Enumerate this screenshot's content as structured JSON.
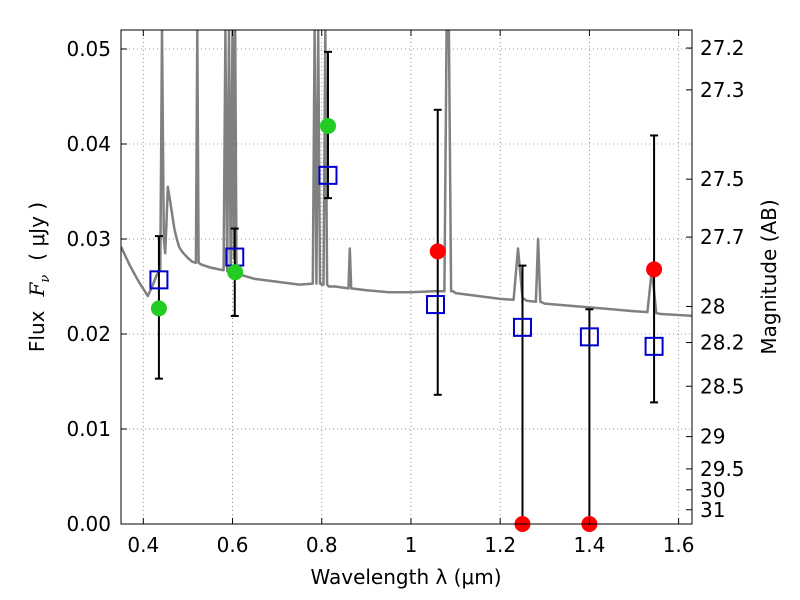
{
  "chart_data": {
    "type": "scatter",
    "xlabel": "Wavelength  λ (μm)",
    "ylabel": "Flux  F_ν  ( μJy )",
    "ylabel_prefix": "Flux",
    "ylabel_sym": "F",
    "ylabel_sub": "ν",
    "ylabel_unit": "( μJy )",
    "y2label": "Magnitude (AB)",
    "xlim": [
      0.35,
      1.63
    ],
    "ylim": [
      0.0,
      0.052
    ],
    "grid": true,
    "x_ticks": [
      0.4,
      0.6,
      0.8,
      1.0,
      1.2,
      1.4,
      1.6
    ],
    "x_tick_labels": [
      "0.4",
      "0.6",
      "0.8",
      "1",
      "1.2",
      "1.4",
      "1.6"
    ],
    "y_ticks": [
      0.0,
      0.01,
      0.02,
      0.03,
      0.04,
      0.05
    ],
    "y_tick_labels": [
      "0.00",
      "0.01",
      "0.02",
      "0.03",
      "0.04",
      "0.05"
    ],
    "mag_ticks": [
      {
        "flux": 0.0501,
        "label": "27.2"
      },
      {
        "flux": 0.0457,
        "label": "27.3"
      },
      {
        "flux": 0.0363,
        "label": "27.5"
      },
      {
        "flux": 0.0302,
        "label": "27.7"
      },
      {
        "flux": 0.0229,
        "label": "28"
      },
      {
        "flux": 0.0191,
        "label": "28.2"
      },
      {
        "flux": 0.0145,
        "label": "28.5"
      },
      {
        "flux": 0.0092,
        "label": "29"
      },
      {
        "flux": 0.0058,
        "label": "29.5"
      },
      {
        "flux": 0.0036,
        "label": "30"
      },
      {
        "flux": 0.0015,
        "label": "31"
      }
    ],
    "colors": {
      "model_line": "#808080",
      "green_points": "#22cc22",
      "red_points": "#ff0000",
      "squares": "#0000cc",
      "errorbars": "#000000"
    },
    "series": [
      {
        "marker": "square",
        "x": [
          0.435,
          0.605,
          0.814,
          1.055,
          1.25,
          1.4,
          1.545
        ],
        "y": [
          0.0257,
          0.0281,
          0.0367,
          0.0231,
          0.0207,
          0.0197,
          0.0187
        ]
      },
      {
        "marker": "circle-green",
        "x": [
          0.435,
          0.606,
          0.814
        ],
        "y": [
          0.0227,
          0.0265,
          0.0419
        ]
      },
      {
        "marker": "circle-red",
        "x": [
          1.06,
          1.25,
          1.4,
          1.545
        ],
        "y": [
          0.0287,
          0.0,
          0.0,
          0.0268
        ]
      }
    ],
    "errorbars": [
      {
        "x": 0.435,
        "low": 0.0153,
        "high": 0.0303
      },
      {
        "x": 0.605,
        "low": 0.0219,
        "high": 0.0311
      },
      {
        "x": 0.814,
        "low": 0.0343,
        "high": 0.0497
      },
      {
        "x": 1.06,
        "low": 0.0136,
        "high": 0.0436
      },
      {
        "x": 1.25,
        "low": 0.0,
        "high": 0.0272
      },
      {
        "x": 1.4,
        "low": 0.0,
        "high": 0.0226
      },
      {
        "x": 1.545,
        "low": 0.0128,
        "high": 0.0409
      }
    ],
    "model_spectrum": {
      "x": [
        0.35,
        0.37,
        0.39,
        0.41,
        0.42,
        0.43,
        0.438,
        0.442,
        0.446,
        0.449,
        0.452,
        0.455,
        0.46,
        0.465,
        0.47,
        0.475,
        0.48,
        0.485,
        0.49,
        0.5,
        0.51,
        0.518,
        0.521,
        0.524,
        0.53,
        0.55,
        0.57,
        0.58,
        0.584,
        0.588,
        0.592,
        0.596,
        0.6,
        0.603,
        0.606,
        0.609,
        0.612,
        0.62,
        0.65,
        0.7,
        0.75,
        0.78,
        0.784,
        0.788,
        0.792,
        0.796,
        0.8,
        0.804,
        0.808,
        0.812,
        0.816,
        0.83,
        0.86,
        0.863,
        0.866,
        0.9,
        0.95,
        1.0,
        1.05,
        1.075,
        1.08,
        1.085,
        1.09,
        1.095,
        1.1,
        1.15,
        1.2,
        1.23,
        1.24,
        1.25,
        1.26,
        1.28,
        1.285,
        1.29,
        1.3,
        1.35,
        1.4,
        1.45,
        1.5,
        1.53,
        1.54,
        1.55,
        1.56,
        1.6,
        1.63
      ],
      "y": [
        0.0292,
        0.0272,
        0.0255,
        0.024,
        0.025,
        0.0262,
        0.0268,
        0.052,
        0.03,
        0.0285,
        0.0318,
        0.0355,
        0.034,
        0.0325,
        0.031,
        0.03,
        0.0292,
        0.0288,
        0.0285,
        0.028,
        0.0276,
        0.0275,
        0.052,
        0.0275,
        0.0273,
        0.027,
        0.0268,
        0.0267,
        0.052,
        0.0266,
        0.052,
        0.0266,
        0.052,
        0.028,
        0.052,
        0.0265,
        0.027,
        0.0262,
        0.0258,
        0.0255,
        0.0252,
        0.0253,
        0.052,
        0.0253,
        0.052,
        0.0253,
        0.0252,
        0.0252,
        0.052,
        0.0252,
        0.025,
        0.025,
        0.0248,
        0.029,
        0.0248,
        0.0246,
        0.0244,
        0.0244,
        0.0245,
        0.0245,
        0.052,
        0.052,
        0.0245,
        0.0245,
        0.0243,
        0.024,
        0.0237,
        0.0236,
        0.029,
        0.0238,
        0.0235,
        0.0234,
        0.03,
        0.0234,
        0.0232,
        0.023,
        0.0228,
        0.0226,
        0.0224,
        0.0223,
        0.0268,
        0.0222,
        0.0221,
        0.022,
        0.0219
      ]
    }
  }
}
